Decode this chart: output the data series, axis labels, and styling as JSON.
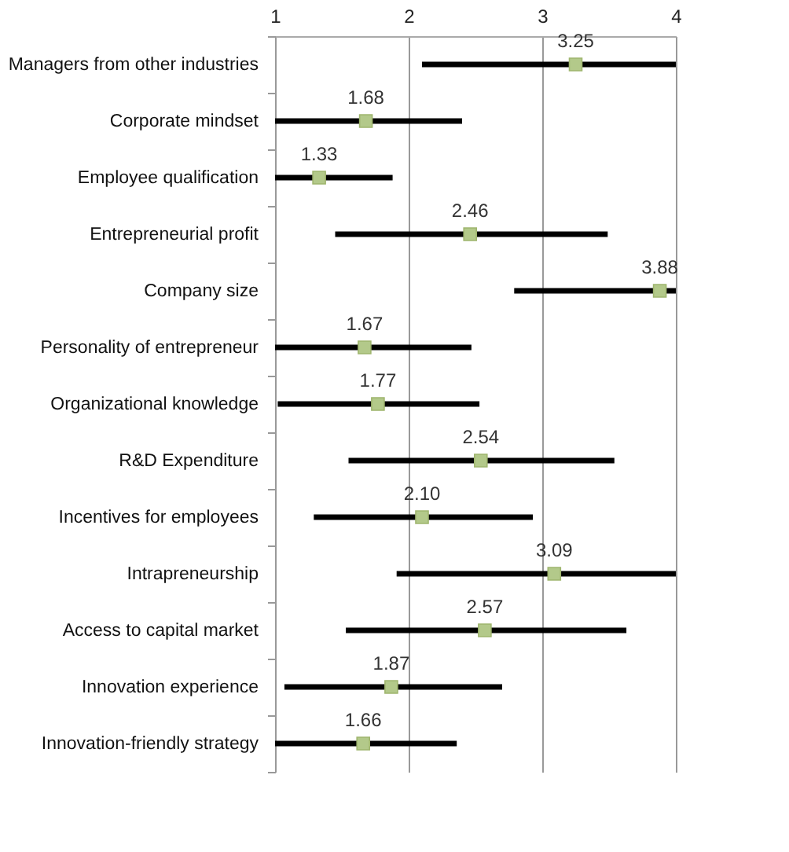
{
  "chart_data": {
    "type": "scatter",
    "orientation": "horizontal",
    "categories": [
      "Managers from other industries",
      "Corporate mindset",
      "Employee qualification",
      "Entrepreneurial profit",
      "Company size",
      "Personality of entrepreneur",
      "Organizational knowledge",
      "R&D Expenditure",
      "Incentives for employees",
      "Intrapreneurship",
      "Access to capital market",
      "Innovation experience",
      "Innovation-friendly strategy"
    ],
    "values": [
      3.25,
      1.68,
      1.33,
      2.46,
      3.88,
      1.67,
      1.77,
      2.54,
      2.1,
      3.09,
      2.57,
      1.87,
      1.66
    ],
    "value_labels": [
      "3.25",
      "1.68",
      "1.33",
      "2.46",
      "3.88",
      "1.67",
      "1.77",
      "2.54",
      "2.10",
      "3.09",
      "2.57",
      "1.87",
      "1.66"
    ],
    "errors": [
      [
        2.1,
        4.0
      ],
      [
        1.0,
        2.4
      ],
      [
        1.0,
        1.88
      ],
      [
        1.45,
        3.49
      ],
      [
        2.79,
        4.0
      ],
      [
        1.0,
        2.47
      ],
      [
        1.02,
        2.53
      ],
      [
        1.55,
        3.54
      ],
      [
        1.29,
        2.93
      ],
      [
        1.91,
        4.0
      ],
      [
        1.53,
        3.63
      ],
      [
        1.07,
        2.7
      ],
      [
        1.0,
        2.36
      ]
    ],
    "color": "#b3c98a",
    "xlim": [
      1,
      4
    ],
    "xticks": [
      1,
      2,
      3,
      4
    ],
    "grid": "x",
    "marker": "square",
    "legend": false
  }
}
